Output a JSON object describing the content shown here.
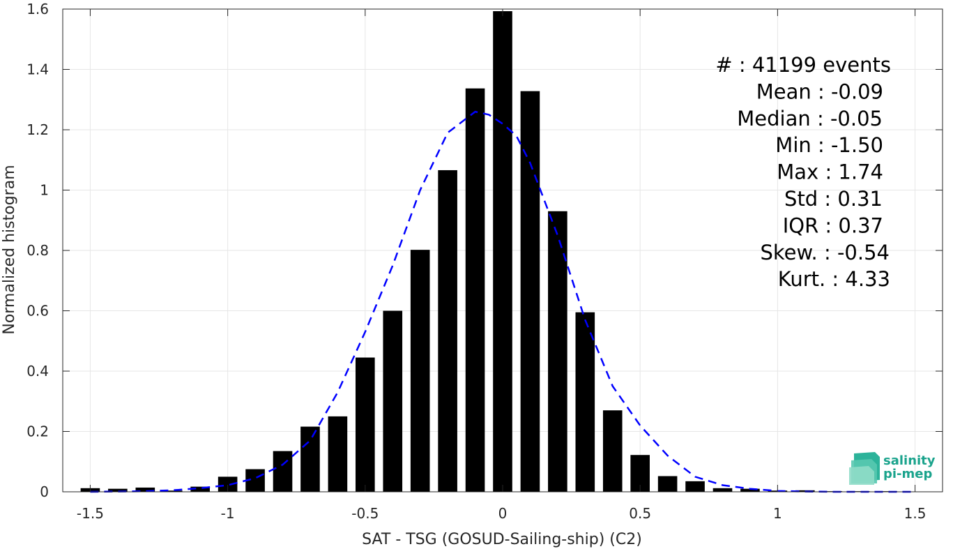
{
  "chart_data": {
    "type": "bar",
    "xlabel": "SAT - TSG (GOSUD-Sailing-ship) (C2)",
    "ylabel": "Normalized histogram",
    "xlim": [
      -1.6,
      1.6
    ],
    "ylim": [
      0,
      1.6
    ],
    "grid": true,
    "xticks": [
      -1.5,
      -1,
      -0.5,
      0,
      0.5,
      1,
      1.5
    ],
    "xtick_labels": [
      "-1.5",
      "-1",
      "-0.5",
      "0",
      "0.5",
      "1",
      "1.5"
    ],
    "yticks": [
      0,
      0.2,
      0.4,
      0.6,
      0.8,
      1,
      1.2,
      1.4,
      1.6
    ],
    "ytick_labels": [
      "0",
      "0.2",
      "0.4",
      "0.6",
      "0.8",
      "1",
      "1.2",
      "1.4",
      "1.6"
    ],
    "bar_width": 0.07,
    "bar_color": "#000000",
    "bars": [
      {
        "x": -1.5,
        "y": 0.012
      },
      {
        "x": -1.4,
        "y": 0.01
      },
      {
        "x": -1.3,
        "y": 0.014
      },
      {
        "x": -1.2,
        "y": 0.004
      },
      {
        "x": -1.1,
        "y": 0.017
      },
      {
        "x": -1.0,
        "y": 0.05
      },
      {
        "x": -0.9,
        "y": 0.075
      },
      {
        "x": -0.8,
        "y": 0.135
      },
      {
        "x": -0.7,
        "y": 0.216
      },
      {
        "x": -0.6,
        "y": 0.25
      },
      {
        "x": -0.5,
        "y": 0.445
      },
      {
        "x": -0.4,
        "y": 0.6
      },
      {
        "x": -0.3,
        "y": 0.802
      },
      {
        "x": -0.2,
        "y": 1.066
      },
      {
        "x": -0.1,
        "y": 1.337
      },
      {
        "x": 0.0,
        "y": 1.593
      },
      {
        "x": 0.1,
        "y": 1.328
      },
      {
        "x": 0.2,
        "y": 0.93
      },
      {
        "x": 0.3,
        "y": 0.595
      },
      {
        "x": 0.4,
        "y": 0.27
      },
      {
        "x": 0.5,
        "y": 0.122
      },
      {
        "x": 0.6,
        "y": 0.052
      },
      {
        "x": 0.7,
        "y": 0.035
      },
      {
        "x": 0.8,
        "y": 0.012
      },
      {
        "x": 0.9,
        "y": 0.01
      },
      {
        "x": 1.0,
        "y": 0.004
      },
      {
        "x": 1.1,
        "y": 0.005
      },
      {
        "x": 1.2,
        "y": 0.002
      },
      {
        "x": 1.3,
        "y": 0.002
      },
      {
        "x": 1.4,
        "y": 0.002
      },
      {
        "x": 1.5,
        "y": 0.001
      }
    ],
    "fit_curve": {
      "style": "dashed",
      "color": "#0000ff",
      "points": [
        [
          -1.5,
          0.0
        ],
        [
          -1.4,
          0.001
        ],
        [
          -1.3,
          0.002
        ],
        [
          -1.2,
          0.005
        ],
        [
          -1.1,
          0.012
        ],
        [
          -1.0,
          0.022
        ],
        [
          -0.9,
          0.045
        ],
        [
          -0.8,
          0.09
        ],
        [
          -0.7,
          0.17
        ],
        [
          -0.6,
          0.33
        ],
        [
          -0.5,
          0.53
        ],
        [
          -0.4,
          0.75
        ],
        [
          -0.3,
          1.0
        ],
        [
          -0.2,
          1.19
        ],
        [
          -0.1,
          1.26
        ],
        [
          -0.05,
          1.25
        ],
        [
          0.0,
          1.22
        ],
        [
          0.05,
          1.18
        ],
        [
          0.1,
          1.09
        ],
        [
          0.2,
          0.85
        ],
        [
          0.3,
          0.57
        ],
        [
          0.4,
          0.35
        ],
        [
          0.5,
          0.22
        ],
        [
          0.6,
          0.12
        ],
        [
          0.7,
          0.05
        ],
        [
          0.8,
          0.022
        ],
        [
          0.9,
          0.01
        ],
        [
          1.0,
          0.003
        ],
        [
          1.1,
          0.001
        ],
        [
          1.2,
          0.0
        ],
        [
          1.3,
          0.0
        ],
        [
          1.5,
          0.0
        ]
      ]
    },
    "stats": [
      "#  : 41199 events",
      "Mean : -0.09",
      "Median : -0.05",
      "Min : -1.50",
      "Max : 1.74",
      "Std : 0.31",
      "IQR : 0.37",
      "Skew. : -0.54",
      "Kurt. : 4.33"
    ]
  },
  "logo": {
    "line1": "salinity",
    "line2": "pi-mep",
    "color": "#1aa38c"
  }
}
